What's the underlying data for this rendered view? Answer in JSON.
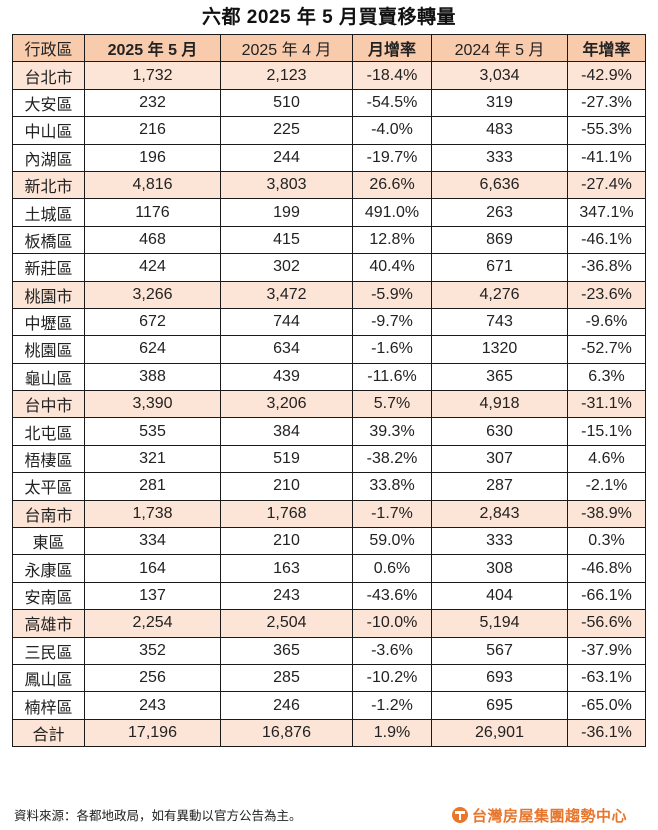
{
  "title": "六都 2025 年 5 月買賣移轉量",
  "table": {
    "headers": [
      "行政區",
      "2025 年 5 月",
      "2025 年 4 月",
      "月增率",
      "2024 年 5 月",
      "年增率"
    ],
    "rows": [
      {
        "type": "city",
        "cells": [
          "台北市",
          "1,732",
          "2,123",
          "-18.4%",
          "3,034",
          "-42.9%"
        ]
      },
      {
        "type": "district",
        "cells": [
          "大安區",
          "232",
          "510",
          "-54.5%",
          "319",
          "-27.3%"
        ]
      },
      {
        "type": "district",
        "cells": [
          "中山區",
          "216",
          "225",
          "-4.0%",
          "483",
          "-55.3%"
        ]
      },
      {
        "type": "district",
        "cells": [
          "內湖區",
          "196",
          "244",
          "-19.7%",
          "333",
          "-41.1%"
        ]
      },
      {
        "type": "city",
        "cells": [
          "新北市",
          "4,816",
          "3,803",
          "26.6%",
          "6,636",
          "-27.4%"
        ]
      },
      {
        "type": "district",
        "cells": [
          "土城區",
          "1176",
          "199",
          "491.0%",
          "263",
          "347.1%"
        ]
      },
      {
        "type": "district",
        "cells": [
          "板橋區",
          "468",
          "415",
          "12.8%",
          "869",
          "-46.1%"
        ]
      },
      {
        "type": "district",
        "cells": [
          "新莊區",
          "424",
          "302",
          "40.4%",
          "671",
          "-36.8%"
        ]
      },
      {
        "type": "city",
        "cells": [
          "桃園市",
          "3,266",
          "3,472",
          "-5.9%",
          "4,276",
          "-23.6%"
        ]
      },
      {
        "type": "district",
        "cells": [
          "中壢區",
          "672",
          "744",
          "-9.7%",
          "743",
          "-9.6%"
        ]
      },
      {
        "type": "district",
        "cells": [
          "桃園區",
          "624",
          "634",
          "-1.6%",
          "1320",
          "-52.7%"
        ]
      },
      {
        "type": "district",
        "cells": [
          "龜山區",
          "388",
          "439",
          "-11.6%",
          "365",
          "6.3%"
        ]
      },
      {
        "type": "city",
        "cells": [
          "台中市",
          "3,390",
          "3,206",
          "5.7%",
          "4,918",
          "-31.1%"
        ]
      },
      {
        "type": "district",
        "cells": [
          "北屯區",
          "535",
          "384",
          "39.3%",
          "630",
          "-15.1%"
        ]
      },
      {
        "type": "district",
        "cells": [
          "梧棲區",
          "321",
          "519",
          "-38.2%",
          "307",
          "4.6%"
        ]
      },
      {
        "type": "district",
        "cells": [
          "太平區",
          "281",
          "210",
          "33.8%",
          "287",
          "-2.1%"
        ]
      },
      {
        "type": "city",
        "cells": [
          "台南市",
          "1,738",
          "1,768",
          "-1.7%",
          "2,843",
          "-38.9%"
        ]
      },
      {
        "type": "district",
        "cells": [
          "東區",
          "334",
          "210",
          "59.0%",
          "333",
          "0.3%"
        ]
      },
      {
        "type": "district",
        "cells": [
          "永康區",
          "164",
          "163",
          "0.6%",
          "308",
          "-46.8%"
        ]
      },
      {
        "type": "district",
        "cells": [
          "安南區",
          "137",
          "243",
          "-43.6%",
          "404",
          "-66.1%"
        ]
      },
      {
        "type": "city",
        "cells": [
          "高雄市",
          "2,254",
          "2,504",
          "-10.0%",
          "5,194",
          "-56.6%"
        ]
      },
      {
        "type": "district",
        "cells": [
          "三民區",
          "352",
          "365",
          "-3.6%",
          "567",
          "-37.9%"
        ]
      },
      {
        "type": "district",
        "cells": [
          "鳳山區",
          "256",
          "285",
          "-10.2%",
          "693",
          "-63.1%"
        ]
      },
      {
        "type": "district",
        "cells": [
          "楠梓區",
          "243",
          "246",
          "-1.2%",
          "695",
          "-65.0%"
        ]
      },
      {
        "type": "total",
        "cells": [
          "合計",
          "17,196",
          "16,876",
          "1.9%",
          "26,901",
          "-36.1%"
        ]
      }
    ]
  },
  "footer": {
    "source_note": "資料來源：各都地政局，如有異動以官方公告為主。",
    "logo_text": "台灣房屋集團趨勢中心"
  },
  "colors": {
    "header_bg": "#f8cbad",
    "city_row_bg": "#fce4d6",
    "logo_orange": "#e8772e"
  }
}
